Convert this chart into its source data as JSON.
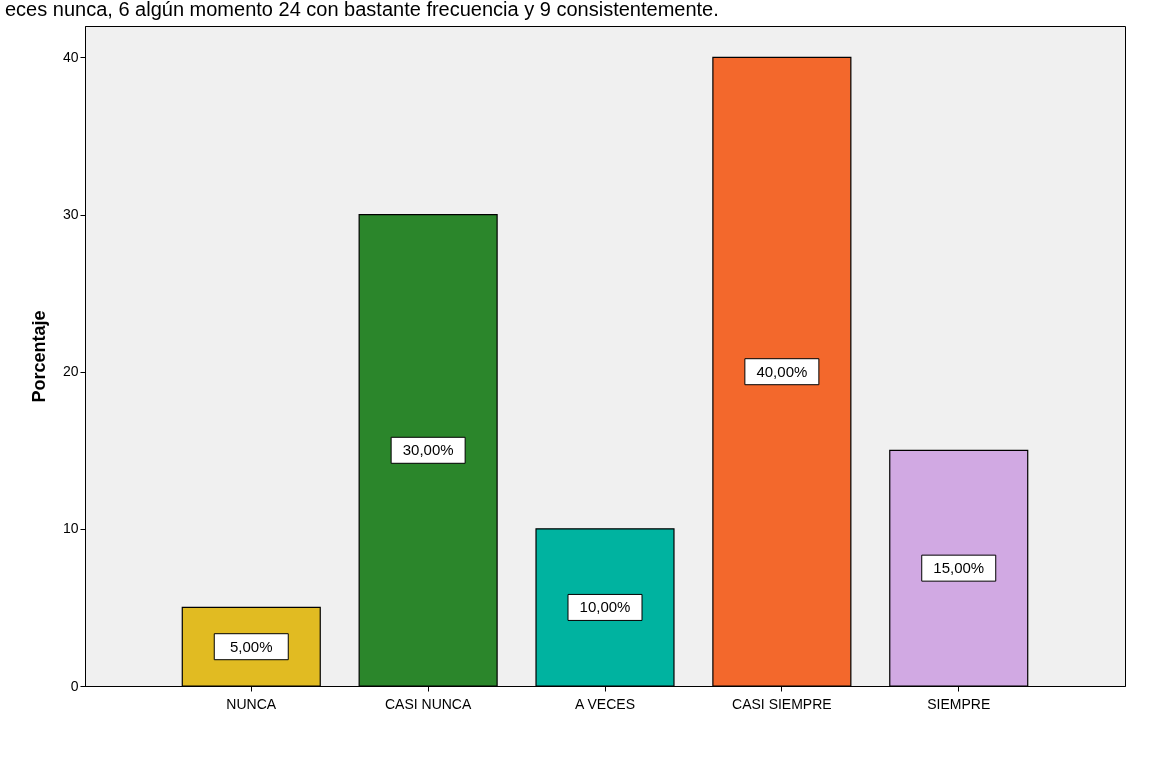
{
  "chart_data": {
    "type": "bar",
    "annotations": [
      "eces nunca, 6 algún momento 24 con bastante frecuencia y 9 consistentemente."
    ],
    "ylabel": "Porcentaje",
    "categories": [
      "NUNCA",
      "CASI NUNCA",
      "A VECES",
      "CASI SIEMPRE",
      "SIEMPRE"
    ],
    "values": [
      5,
      30,
      10,
      40,
      15
    ],
    "colors": [
      "#e1bb22",
      "#2b862b",
      "#00b3a0",
      "#f3682c",
      "#d1a9e3"
    ],
    "value_labels": [
      "5,00%",
      "30,00%",
      "10,00%",
      "40,00%",
      "15,00%"
    ],
    "ylim": [
      0,
      42
    ],
    "yticks": [
      0,
      10,
      20,
      30,
      40
    ],
    "grid": false
  }
}
